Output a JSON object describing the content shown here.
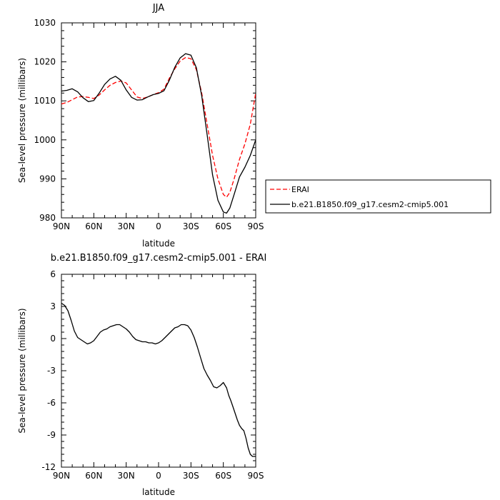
{
  "chart_data": [
    {
      "type": "line",
      "title": "JJA",
      "xlabel": "latitude",
      "ylabel": "Sea-level pressure (millibars)",
      "xlim": [
        90,
        -90
      ],
      "ylim": [
        980,
        1030
      ],
      "x_ticks": [
        90,
        60,
        30,
        0,
        -30,
        -60,
        -90
      ],
      "x_tick_labels": [
        "90N",
        "60N",
        "30N",
        "0",
        "30S",
        "60S",
        "90S"
      ],
      "y_ticks": [
        980,
        990,
        1000,
        1010,
        1020,
        1030
      ],
      "y_tick_labels": [
        "980",
        "990",
        "1000",
        "1010",
        "1020",
        "1030"
      ],
      "legend": "outside-right",
      "series": [
        {
          "name": "ERAI",
          "color": "#ff0000",
          "dash": "dashed",
          "x": [
            90,
            85,
            80,
            75,
            70,
            65,
            60,
            55,
            50,
            45,
            40,
            35,
            30,
            25,
            20,
            15,
            10,
            5,
            0,
            -5,
            -10,
            -15,
            -20,
            -25,
            -30,
            -35,
            -40,
            -45,
            -50,
            -55,
            -60,
            -63,
            -66,
            -70,
            -75,
            -80,
            -85,
            -90
          ],
          "y": [
            1009.2,
            1009.6,
            1010.3,
            1011.0,
            1011.1,
            1010.9,
            1010.6,
            1011.5,
            1012.8,
            1014.0,
            1014.7,
            1015.1,
            1014.6,
            1012.8,
            1011.0,
            1010.6,
            1011.0,
            1011.6,
            1012.1,
            1013.0,
            1015.8,
            1018.2,
            1020.2,
            1021.1,
            1020.8,
            1018.0,
            1012.0,
            1004.0,
            996.0,
            990.0,
            986.0,
            985.3,
            986.5,
            990.0,
            995.0,
            999.0,
            1004.0,
            1012.0
          ]
        },
        {
          "name": "b.e21.B1850.f09_g17.cesm2-cmip5.001",
          "color": "#000000",
          "dash": "solid",
          "x": [
            90,
            85,
            80,
            75,
            70,
            65,
            60,
            55,
            50,
            45,
            40,
            35,
            30,
            25,
            20,
            15,
            10,
            5,
            0,
            -5,
            -10,
            -15,
            -20,
            -25,
            -30,
            -35,
            -40,
            -45,
            -50,
            -55,
            -60,
            -63,
            -66,
            -70,
            -75,
            -80,
            -85,
            -90
          ],
          "y": [
            1012.5,
            1012.7,
            1013.1,
            1012.3,
            1010.8,
            1009.8,
            1010.1,
            1012.0,
            1014.2,
            1015.6,
            1016.3,
            1015.3,
            1012.8,
            1010.9,
            1010.2,
            1010.3,
            1011.0,
            1011.6,
            1011.9,
            1012.6,
            1015.3,
            1018.6,
            1021.0,
            1022.1,
            1021.7,
            1018.5,
            1011.3,
            1001.3,
            991.0,
            984.5,
            981.5,
            981.2,
            982.5,
            986.0,
            990.5,
            993.0,
            996.0,
            1000.0
          ]
        }
      ]
    },
    {
      "type": "line",
      "title": "b.e21.B1850.f09_g17.cesm2-cmip5.001 - ERAI",
      "xlabel": "latitude",
      "ylabel": "Sea-level pressure (millibars)",
      "xlim": [
        90,
        -90
      ],
      "ylim": [
        -12,
        6
      ],
      "x_ticks": [
        90,
        60,
        30,
        0,
        -30,
        -60,
        -90
      ],
      "x_tick_labels": [
        "90N",
        "60N",
        "30N",
        "0",
        "30S",
        "60S",
        "90S"
      ],
      "y_ticks": [
        -12,
        -9,
        -6,
        -3,
        0,
        3,
        6
      ],
      "y_tick_labels": [
        "-12",
        "-9",
        "-6",
        "-3",
        "0",
        "3",
        "6"
      ],
      "series": [
        {
          "color": "#000000",
          "dash": "solid",
          "x": [
            90,
            87,
            84,
            81,
            78,
            75,
            72,
            69,
            66,
            63,
            60,
            57,
            54,
            51,
            48,
            45,
            42,
            39,
            36,
            33,
            30,
            27,
            24,
            21,
            18,
            15,
            12,
            9,
            6,
            3,
            0,
            -3,
            -6,
            -9,
            -12,
            -15,
            -18,
            -21,
            -24,
            -27,
            -30,
            -33,
            -36,
            -39,
            -42,
            -45,
            -48,
            -51,
            -54,
            -57,
            -60,
            -63,
            -65,
            -67,
            -69,
            -71,
            -73,
            -75,
            -77,
            -79,
            -81,
            -83,
            -85,
            -87,
            -89,
            -90
          ],
          "y": [
            3.3,
            3.1,
            2.6,
            1.7,
            0.7,
            0.1,
            -0.1,
            -0.3,
            -0.5,
            -0.4,
            -0.2,
            0.2,
            0.6,
            0.8,
            0.9,
            1.1,
            1.2,
            1.3,
            1.3,
            1.1,
            0.9,
            0.6,
            0.2,
            -0.1,
            -0.2,
            -0.3,
            -0.3,
            -0.4,
            -0.4,
            -0.5,
            -0.4,
            -0.2,
            0.1,
            0.4,
            0.7,
            1.0,
            1.1,
            1.3,
            1.3,
            1.2,
            0.8,
            0.1,
            -0.8,
            -1.8,
            -2.8,
            -3.4,
            -3.9,
            -4.5,
            -4.6,
            -4.4,
            -4.1,
            -4.6,
            -5.3,
            -5.8,
            -6.4,
            -7.0,
            -7.6,
            -8.1,
            -8.4,
            -8.6,
            -9.3,
            -10.2,
            -10.8,
            -11.0,
            -11.0,
            -11.0
          ]
        }
      ]
    }
  ]
}
